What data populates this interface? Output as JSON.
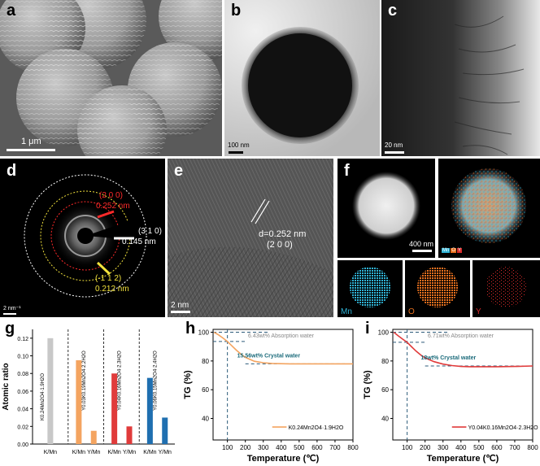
{
  "panels": {
    "a": {
      "letter": "a",
      "scale": "1 μm"
    },
    "b": {
      "letter": "b",
      "scale": "100 nm"
    },
    "c": {
      "letter": "c",
      "scale": "20 nm"
    },
    "d": {
      "letter": "d",
      "scale": "2 nm⁻¹",
      "rings": [
        {
          "hkl": "(2 0 0)",
          "d": "0.252 nm",
          "color": "#ff2a2a"
        },
        {
          "hkl": "(3 1 0)",
          "d": "0.145 nm",
          "color": "#ffffff"
        },
        {
          "hkl": "(-1 1 2)",
          "d": "0.212 nm",
          "color": "#f2e23c"
        }
      ]
    },
    "e": {
      "letter": "e",
      "scale": "2 nm",
      "d_label": "d=0.252 nm",
      "hkl": "(2 0 0)"
    },
    "f": {
      "letter": "f",
      "scale": "400 nm",
      "legend": [
        "Mn",
        "O",
        "Y"
      ],
      "maps": [
        {
          "label": "Mn",
          "color": "#2fb3d6"
        },
        {
          "label": "O",
          "color": "#e8701e"
        },
        {
          "label": "Y",
          "color": "#d62a2a"
        }
      ]
    },
    "g": {
      "letter": "g"
    },
    "h": {
      "letter": "h"
    },
    "i": {
      "letter": "i"
    }
  },
  "chart_data": [
    {
      "type": "bar",
      "panel": "g",
      "ylabel": "Atomic ratio",
      "ylim": [
        0,
        0.13
      ],
      "yticks": [
        "0.00",
        "0.02",
        "0.04",
        "0.06",
        "0.08",
        "0.10",
        "0.12"
      ],
      "categories": [
        "K/Mn",
        "K/Mn",
        "Y/Mn",
        "K/Mn",
        "Y/Mn",
        "K/Mn",
        "Y/Mn"
      ],
      "groups": [
        {
          "name": "K0.24Mn2O4·1.9H2O",
          "bars": [
            {
              "label": "K/Mn",
              "value": 0.12,
              "color": "#c8c8c8"
            }
          ]
        },
        {
          "name": "Y0.03K0.19Mn2O4·2.2H2O",
          "bars": [
            {
              "label": "K/Mn",
              "value": 0.095,
              "color": "#f4a460"
            },
            {
              "label": "Y/Mn",
              "value": 0.015,
              "color": "#f4a460"
            }
          ]
        },
        {
          "name": "Y0.04K0.16Mn2O4·2.3H2O",
          "bars": [
            {
              "label": "K/Mn",
              "value": 0.08,
              "color": "#e03b3b"
            },
            {
              "label": "Y/Mn",
              "value": 0.02,
              "color": "#e03b3b"
            }
          ]
        },
        {
          "name": "Y0.06K0.15Mn2O4·2.4H2O",
          "bars": [
            {
              "label": "K/Mn",
              "value": 0.075,
              "color": "#1f6fb0"
            },
            {
              "label": "Y/Mn",
              "value": 0.03,
              "color": "#1f6fb0"
            }
          ]
        }
      ]
    },
    {
      "type": "line",
      "panel": "h",
      "xlabel": "Temperature (℃)",
      "ylabel": "TG (%)",
      "xlim": [
        20,
        800
      ],
      "ylim": [
        25,
        102
      ],
      "xticks": [
        100,
        200,
        300,
        400,
        500,
        600,
        700,
        800
      ],
      "yticks": [
        40,
        60,
        80,
        100
      ],
      "annotations": [
        "6.43wt% Absorption water",
        "15.56wt% Crystal water"
      ],
      "series": [
        {
          "name": "K0.24Mn2O4·1.9H2O",
          "color": "#f4a460",
          "x": [
            25,
            50,
            75,
            100,
            125,
            150,
            175,
            200,
            250,
            300,
            350,
            400,
            450,
            500,
            600,
            700,
            800
          ],
          "y": [
            100,
            98.2,
            96,
            93.6,
            90.5,
            87.5,
            84.8,
            82.5,
            79.8,
            78.8,
            78.3,
            78.1,
            78.0,
            78.0,
            78.0,
            78.0,
            78.0
          ]
        }
      ]
    },
    {
      "type": "line",
      "panel": "i",
      "xlabel": "Temperature (℃)",
      "ylabel": "TG (%)",
      "xlim": [
        20,
        800
      ],
      "ylim": [
        25,
        102
      ],
      "xticks": [
        100,
        200,
        300,
        400,
        500,
        600,
        700,
        800
      ],
      "yticks": [
        40,
        60,
        80,
        100
      ],
      "annotations": [
        "6.71wt% Absorption water",
        "18wt% Crystal water"
      ],
      "series": [
        {
          "name": "Y0.04K0.16Mn2O4·2.3H2O",
          "color": "#e03b3b",
          "x": [
            25,
            50,
            75,
            100,
            125,
            150,
            175,
            200,
            250,
            300,
            350,
            400,
            450,
            500,
            600,
            700,
            800
          ],
          "y": [
            100,
            97.5,
            95.2,
            93.0,
            89.8,
            86.8,
            84.2,
            82.2,
            79.5,
            77.8,
            76.8,
            76.2,
            76.0,
            76.0,
            76.0,
            76.2,
            76.5
          ]
        }
      ]
    }
  ]
}
